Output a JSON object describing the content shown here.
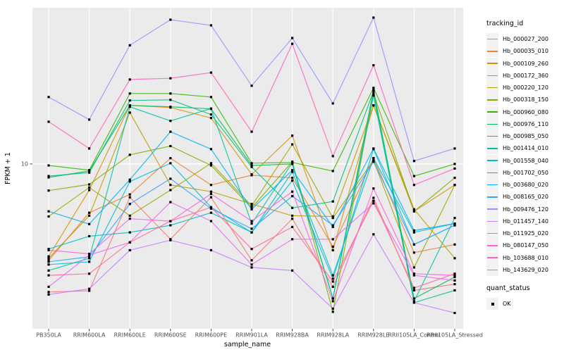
{
  "figure": {
    "y_axis": {
      "title": "FPKM + 1",
      "tick_label": "10"
    },
    "x_axis": {
      "title": "sample_name"
    },
    "legend": {
      "tracking_title": "tracking_id",
      "quant_title": "quant_status",
      "quant_ok_label": "OK"
    },
    "colors": {
      "panel_bg": "#ebebeb",
      "grid": "#ffffff",
      "point": "#000000",
      "axis_text": "#4d4d4d",
      "tick_mark": "#333333"
    }
  },
  "chart_data": {
    "type": "line",
    "title": "",
    "xlabel": "sample_name",
    "ylabel": "FPKM + 1",
    "y_scale": "log10",
    "ylim": [
      1.1,
      81
    ],
    "y_ticks": [
      10
    ],
    "grid": true,
    "legend_position": "right",
    "quant_status": "OK",
    "categories": [
      "PB350LA",
      "RRIM600LA",
      "RRIM600LE",
      "RRIM600SE",
      "RRIM600PE",
      "RRIM901LA",
      "RRIM928BA",
      "RRIM928LA",
      "RRIM928LE",
      "RRII105LA_Control",
      "RRII105LA_Stressed"
    ],
    "series": [
      {
        "name": "Hb_000027_200",
        "color": "#F8766D",
        "values": [
          1.8,
          1.83,
          6.4,
          3.65,
          6.4,
          2.75,
          4.8,
          1.93,
          6.35,
          1.84,
          2.0
        ]
      },
      {
        "name": "Hb_000035_010",
        "color": "#EA8331",
        "values": [
          2.75,
          5.2,
          6.65,
          10.8,
          7.55,
          8.6,
          8.3,
          3.3,
          10.8,
          3.05,
          3.4
        ]
      },
      {
        "name": "Hb_000109_260",
        "color": "#D89000",
        "values": [
          2.9,
          7.05,
          21.9,
          21.3,
          18.5,
          8.7,
          14.6,
          3.15,
          21.9,
          5.3,
          7.55
        ]
      },
      {
        "name": "Hb_000172_360",
        "color": "#C09B00",
        "values": [
          2.83,
          5.0,
          19.9,
          7.55,
          6.9,
          5.85,
          5.0,
          4.95,
          21.9,
          5.45,
          2.83
        ]
      },
      {
        "name": "Hb_000220_120",
        "color": "#A3A500",
        "values": [
          4.95,
          7.3,
          5.0,
          7.05,
          10.1,
          5.7,
          13.0,
          4.85,
          10.5,
          2.5,
          7.55
        ]
      },
      {
        "name": "Hb_000318_150",
        "color": "#7CAE00",
        "values": [
          7.0,
          7.6,
          11.3,
          12.7,
          9.8,
          5.55,
          10.3,
          1.38,
          25.7,
          5.3,
          8.3
        ]
      },
      {
        "name": "Hb_000960_080",
        "color": "#39B600",
        "values": [
          9.8,
          9.2,
          25.7,
          25.7,
          24.5,
          10.1,
          10.2,
          9.1,
          27.7,
          8.5,
          10.0
        ]
      },
      {
        "name": "Hb_000976_110",
        "color": "#00BB4E",
        "values": [
          8.35,
          9.1,
          21.9,
          21.5,
          20.9,
          9.8,
          10.0,
          1.65,
          27.0,
          1.65,
          2.2
        ]
      },
      {
        "name": "Hb_000985_050",
        "color": "#00BF7D",
        "values": [
          8.5,
          8.9,
          23.4,
          23.6,
          19.4,
          9.6,
          5.55,
          6.05,
          26.5,
          1.56,
          1.84
        ]
      },
      {
        "name": "Hb_001414_010",
        "color": "#00C1A3",
        "values": [
          2.4,
          2.83,
          21.5,
          17.8,
          21.0,
          4.5,
          10.15,
          1.65,
          25.0,
          1.59,
          4.85
        ]
      },
      {
        "name": "Hb_001558_040",
        "color": "#00BFC4",
        "values": [
          3.2,
          3.8,
          4.0,
          4.4,
          5.2,
          4.0,
          9.0,
          2.25,
          10.8,
          4.0,
          4.5
        ]
      },
      {
        "name": "Hb_001702_050",
        "color": "#00BAE0",
        "values": [
          2.6,
          2.7,
          7.9,
          10.1,
          5.6,
          4.0,
          8.0,
          2.15,
          12.2,
          3.4,
          4.4
        ]
      },
      {
        "name": "Hb_003680_020",
        "color": "#00B0F6",
        "values": [
          5.3,
          4.47,
          8.1,
          15.4,
          12.2,
          5.45,
          9.2,
          4.3,
          12.3,
          4.1,
          4.5
        ]
      },
      {
        "name": "Hb_008165_020",
        "color": "#35A2FF",
        "values": [
          2.7,
          2.88,
          5.85,
          8.2,
          5.5,
          4.2,
          6.5,
          4.4,
          10.3,
          3.4,
          4.4
        ]
      },
      {
        "name": "Hb_009476_120",
        "color": "#9590FF",
        "values": [
          24.5,
          18.1,
          49.0,
          69.0,
          64.0,
          28.5,
          54.0,
          22.5,
          71.0,
          10.4,
          12.3
        ]
      },
      {
        "name": "Hb_011457_140",
        "color": "#C77CFF",
        "values": [
          1.74,
          1.88,
          3.15,
          3.6,
          3.15,
          2.5,
          2.4,
          1.44,
          3.9,
          1.56,
          1.36
        ]
      },
      {
        "name": "Hb_011925_020",
        "color": "#E76BF3",
        "values": [
          1.93,
          2.95,
          3.5,
          6.0,
          4.65,
          2.6,
          3.65,
          3.65,
          5.9,
          2.25,
          2.1
        ]
      },
      {
        "name": "Hb_080147_050",
        "color": "#FA62DB",
        "values": [
          3.15,
          3.0,
          4.8,
          4.65,
          6.7,
          4.65,
          6.9,
          1.59,
          7.2,
          2.3,
          2.25
        ]
      },
      {
        "name": "Hb_103688_010",
        "color": "#FF62BC",
        "values": [
          17.6,
          12.3,
          31.0,
          31.5,
          34.0,
          15.4,
          50.0,
          11.1,
          37.5,
          7.55,
          9.4
        ]
      },
      {
        "name": "Hb_143629_020",
        "color": "#FF6A98",
        "values": [
          2.25,
          2.3,
          3.5,
          4.65,
          5.6,
          3.2,
          4.3,
          2.07,
          6.1,
          1.9,
          2.3
        ]
      }
    ]
  }
}
